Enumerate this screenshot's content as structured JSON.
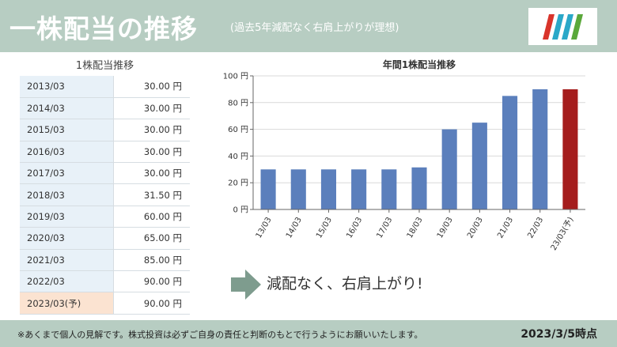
{
  "header": {
    "title": "一株配当の推移",
    "subtitle": "(過去5年減配なく右肩上がりが理想)"
  },
  "table": {
    "caption": "1株配当推移",
    "rows": [
      {
        "year": "2013/03",
        "value": "30.00 円",
        "forecast": false
      },
      {
        "year": "2014/03",
        "value": "30.00 円",
        "forecast": false
      },
      {
        "year": "2015/03",
        "value": "30.00 円",
        "forecast": false
      },
      {
        "year": "2016/03",
        "value": "30.00 円",
        "forecast": false
      },
      {
        "year": "2017/03",
        "value": "30.00 円",
        "forecast": false
      },
      {
        "year": "2018/03",
        "value": "31.50 円",
        "forecast": false
      },
      {
        "year": "2019/03",
        "value": "60.00 円",
        "forecast": false
      },
      {
        "year": "2020/03",
        "value": "65.00 円",
        "forecast": false
      },
      {
        "year": "2021/03",
        "value": "85.00 円",
        "forecast": false
      },
      {
        "year": "2022/03",
        "value": "90.00 円",
        "forecast": false
      },
      {
        "year": "2023/03(予)",
        "value": "90.00 円",
        "forecast": true
      }
    ]
  },
  "chart_data": {
    "type": "bar",
    "title": "年間1株配当推移",
    "categories": [
      "13/03",
      "14/03",
      "15/03",
      "16/03",
      "17/03",
      "18/03",
      "19/03",
      "20/03",
      "21/03",
      "22/03",
      "23/03(予)"
    ],
    "values": [
      30,
      30,
      30,
      30,
      30,
      31.5,
      60,
      65,
      85,
      90,
      90
    ],
    "ylim": [
      0,
      100
    ],
    "yticks": [
      0,
      20,
      40,
      60,
      80,
      100
    ],
    "ytick_labels": [
      "0 円",
      "20 円",
      "40 円",
      "60 円",
      "80 円",
      "100 円"
    ],
    "grid": true,
    "colors": {
      "actual": "#5b7fbc",
      "forecast": "#a51d1d"
    }
  },
  "note": {
    "text": "減配なく、右肩上がり!",
    "arrow_color": "#7e9c8e"
  },
  "footer": {
    "disclaimer": "※あくまで個人の見解です。株式投資は必ずご自身の責任と判断のもとで行うようにお願いいたします。",
    "as_of": "2023/3/5時点"
  },
  "colors": {
    "header_bg": "#b7cdc2",
    "table_year_bg": "#e8f1f8",
    "table_forecast_bg": "#fbe3d1"
  }
}
